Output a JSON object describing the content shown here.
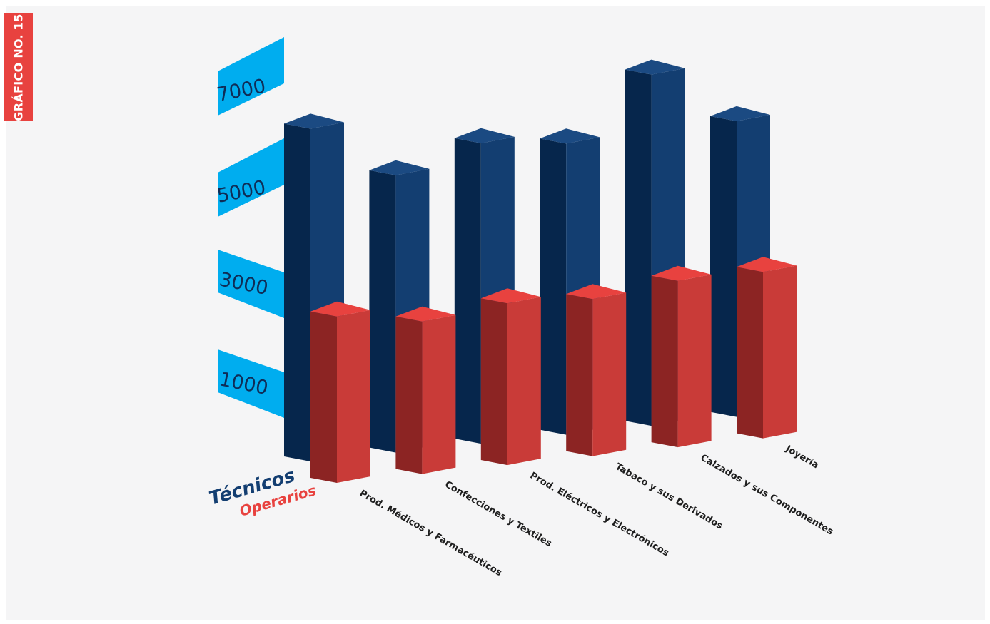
{
  "badge": {
    "text": "GRÁFICO NO. 15"
  },
  "colors": {
    "badge": "#e8423f",
    "tecnicos_front": "#133e71",
    "tecnicos_side": "#06264c",
    "tecnicos_top": "#1b4a82",
    "operarios_front": "#c93b38",
    "operarios_side": "#8c2423",
    "operarios_top": "#e8423f",
    "axis_panel": "#00adef"
  },
  "chart_data": {
    "type": "bar",
    "style": "3d",
    "categories": [
      "Prod. Médicos y Farmacéuticos",
      "Confecciones y Textiles",
      "Prod. Eléctricos y Electrónicos",
      "Tabaco y sus Derivados",
      "Calzados y sus Componentes",
      "Joyería"
    ],
    "series": [
      {
        "name": "Técnicos",
        "values": [
          7200,
          6000,
          6500,
          6300,
          7600,
          6400
        ]
      },
      {
        "name": "Operarios",
        "values": [
          3600,
          3300,
          3500,
          3400,
          3600,
          3600
        ]
      }
    ],
    "yticks": [
      "7000",
      "5000",
      "3000",
      "1000"
    ],
    "ylim": [
      0,
      8000
    ],
    "grid": false,
    "legend": "bottom-left"
  }
}
